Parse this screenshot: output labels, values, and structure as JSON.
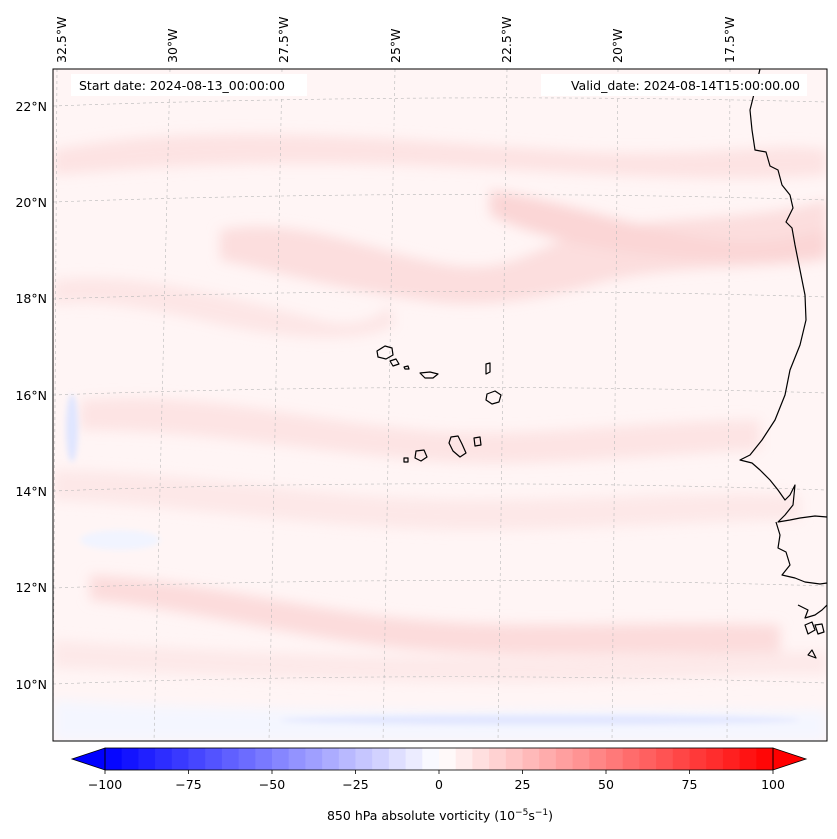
{
  "map": {
    "type": "filled-contour-map",
    "projection": "Lambert conformal (graticule curved)",
    "lon_ticks": [
      "32.5°W",
      "30°W",
      "27.5°W",
      "25°W",
      "22.5°W",
      "20°W",
      "17.5°W"
    ],
    "lat_ticks": [
      "22°N",
      "20°N",
      "18°N",
      "16°N",
      "14°N",
      "12°N",
      "10°N"
    ],
    "start_date_text": "Start date: 2024-08-13_00:00:00",
    "valid_date_text": "Valid_date: 2024-08-14T15:00:00.00",
    "gridlines": "dashed, light gray",
    "coastline_color": "#000000",
    "field_colors": {
      "positive_light": "#fde6e6",
      "positive_faint": "#fff4f4",
      "negative_faint": "#eef2ff",
      "negative_light": "#dde4ff"
    }
  },
  "colorbar": {
    "label": "850 hPa absolute vorticity (10",
    "label_exp1": "−5",
    "label_mid": "s",
    "label_exp2": "−1",
    "label_end": ")",
    "ticks": [
      "−100",
      "−75",
      "−50",
      "−25",
      "0",
      "25",
      "50",
      "75",
      "100"
    ],
    "min": -100,
    "max": 100,
    "extend": "both",
    "colormap": "bwr",
    "colors": {
      "min": "#0000ff",
      "mid": "#ffffff",
      "max": "#ff0000"
    }
  }
}
